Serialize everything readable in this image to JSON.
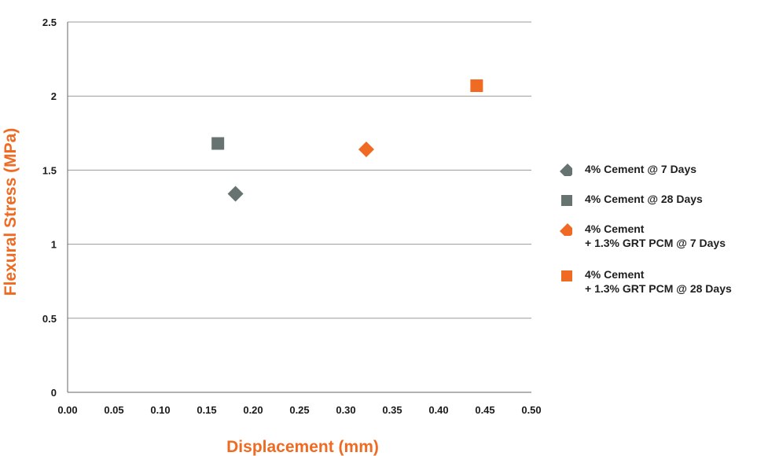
{
  "chart_data": {
    "type": "scatter",
    "xlabel": "Displacement (mm)",
    "ylabel": "Flexural Stress (MPa)",
    "xlim": [
      0,
      0.5
    ],
    "ylim": [
      0,
      2.5
    ],
    "x_ticks": [
      "0.00",
      "0.05",
      "0.10",
      "0.15",
      "0.20",
      "0.25",
      "0.30",
      "0.35",
      "0.40",
      "0.45",
      "0.50"
    ],
    "y_ticks": [
      "0",
      "0.5",
      "1",
      "1.5",
      "2",
      "2.5"
    ],
    "grid": "horizontal",
    "legend_position": "right",
    "series": [
      {
        "name": "4% Cement @ 7 Days",
        "name_lines": [
          "4% Cement @ 7 Days"
        ],
        "marker": "diamond",
        "color": "#667371",
        "x": 0.181,
        "y": 1.34
      },
      {
        "name": "4% Cement @ 28 Days",
        "name_lines": [
          "4% Cement @ 28 Days"
        ],
        "marker": "square",
        "color": "#667371",
        "x": 0.162,
        "y": 1.68
      },
      {
        "name": "4% Cement + 1.3% GRT PCM @ 7 Days",
        "name_lines": [
          "4% Cement",
          "+ 1.3% GRT PCM @ 7 Days"
        ],
        "marker": "diamond",
        "color": "#ef6a22",
        "x": 0.322,
        "y": 1.64
      },
      {
        "name": "4% Cement + 1.3% GRT PCM @ 28 Days",
        "name_lines": [
          "4% Cement",
          "+ 1.3% GRT PCM @ 28 Days"
        ],
        "marker": "square",
        "color": "#ef6a22",
        "x": 0.441,
        "y": 2.07
      }
    ],
    "colors": {
      "axis_title": "#ef6a22",
      "gridline": "#9a9a9a",
      "axis": "#666666"
    }
  }
}
